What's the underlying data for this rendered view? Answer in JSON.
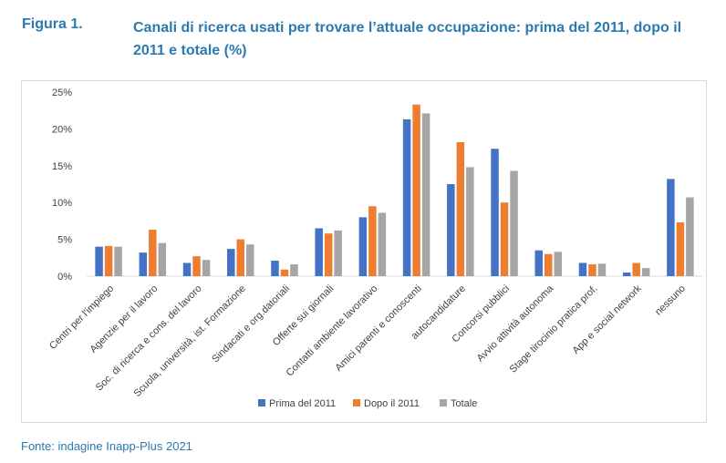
{
  "figure": {
    "label": "Figura 1.",
    "title": "Canali di ricerca usati per trovare l’attuale occupazione: prima del 2011, dopo il 2011 e totale (%)"
  },
  "source": "Fonte: indagine Inapp-Plus 2021",
  "chart_data": {
    "type": "bar",
    "title": "",
    "xlabel": "",
    "ylabel": "",
    "ylim": [
      0,
      25
    ],
    "yticks": [
      "0%",
      "5%",
      "10%",
      "15%",
      "20%",
      "25%"
    ],
    "ytick_values": [
      0,
      5,
      10,
      15,
      20,
      25
    ],
    "grid": false,
    "legend_position": "bottom",
    "categories": [
      "Centri per l'impiego",
      "Agenzie per il lavoro",
      "Soc. di ricerca e cons. del lavoro",
      "Scuola, università, ist. Formazione",
      "Sindacati e org.datoriali",
      "Offerte sui giornali",
      "Contatti ambiente lavorativo",
      "Amici parenti e conoscenti",
      "autocandidature",
      "Concorsi pubblici",
      "Avvio attività autonoma",
      "Stage tirocinio pratica prof.",
      "App e social network",
      "nessuno"
    ],
    "series": [
      {
        "name": "Prima del 2011",
        "color": "#4472c4",
        "values": [
          4.0,
          3.2,
          1.8,
          3.7,
          2.1,
          6.5,
          8.0,
          21.3,
          12.5,
          17.3,
          3.5,
          1.8,
          0.5,
          13.2
        ]
      },
      {
        "name": "Dopo il 2011",
        "color": "#ed7d31",
        "values": [
          4.1,
          6.3,
          2.7,
          5.0,
          0.9,
          5.8,
          9.5,
          23.3,
          18.2,
          10.0,
          3.0,
          1.6,
          1.8,
          7.3
        ]
      },
      {
        "name": "Totale",
        "color": "#a5a5a5",
        "values": [
          4.0,
          4.5,
          2.2,
          4.3,
          1.6,
          6.2,
          8.6,
          22.1,
          14.8,
          14.3,
          3.3,
          1.7,
          1.1,
          10.7
        ]
      }
    ]
  }
}
